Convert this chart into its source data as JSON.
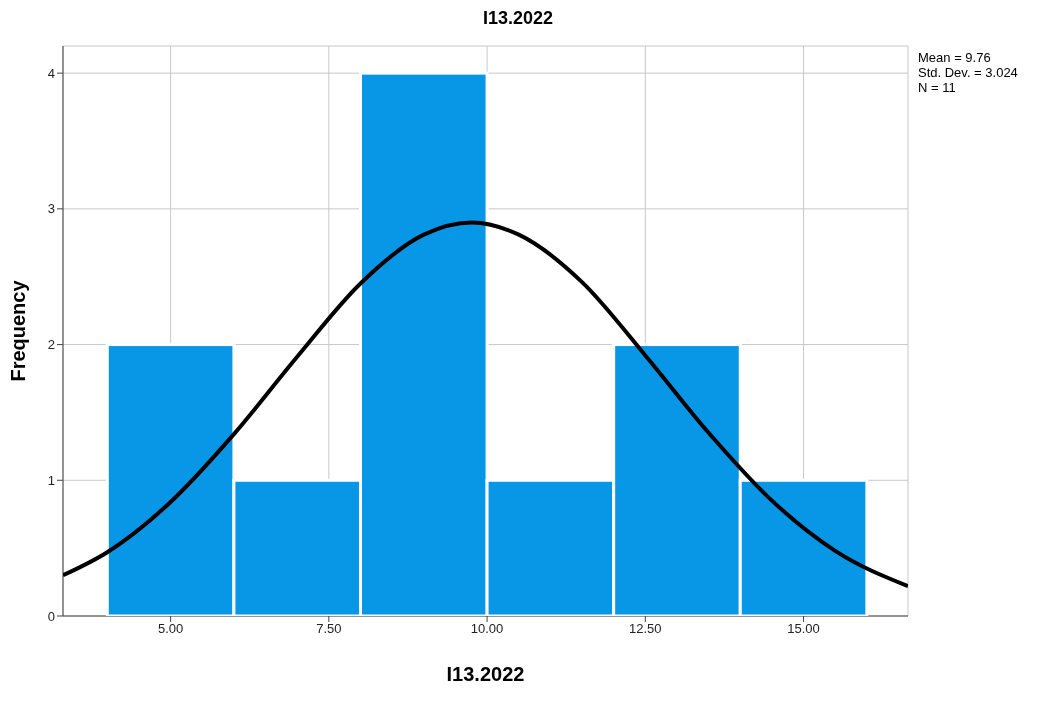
{
  "chart_data": {
    "type": "histogram",
    "title": "I13.2022",
    "xlabel": "I13.2022",
    "ylabel": "Frequency",
    "bins": [
      4,
      6,
      8,
      10,
      12,
      14,
      16
    ],
    "values": [
      2,
      1,
      4,
      1,
      2,
      1
    ],
    "color": "#0896e6",
    "series": [
      {
        "type": "line",
        "color": "#000000",
        "x": [
          3.3,
          4,
          5,
          6,
          7,
          8,
          9,
          9.76,
          10.5,
          11.5,
          12.5,
          13.5,
          14.5,
          15.5,
          16.65
        ],
        "values": [
          0.3,
          0.47,
          0.84,
          1.34,
          1.91,
          2.45,
          2.81,
          2.9,
          2.81,
          2.46,
          1.92,
          1.35,
          0.85,
          0.48,
          0.22
        ]
      }
    ],
    "xlim": [
      3.3,
      16.65
    ],
    "xticks": [
      {
        "value": 5,
        "label": "5.00"
      },
      {
        "value": 7.5,
        "label": "7.50"
      },
      {
        "value": 10,
        "label": "10.00"
      },
      {
        "value": 12.5,
        "label": "12.50"
      },
      {
        "value": 15,
        "label": "15.00"
      }
    ],
    "ylim": [
      0,
      4.2
    ],
    "yticks": [
      0,
      1,
      2,
      3,
      4
    ],
    "grid": true,
    "annotations": [
      "Mean = 9.76",
      "Std. Dev. = 3.024",
      "N = 11"
    ]
  }
}
